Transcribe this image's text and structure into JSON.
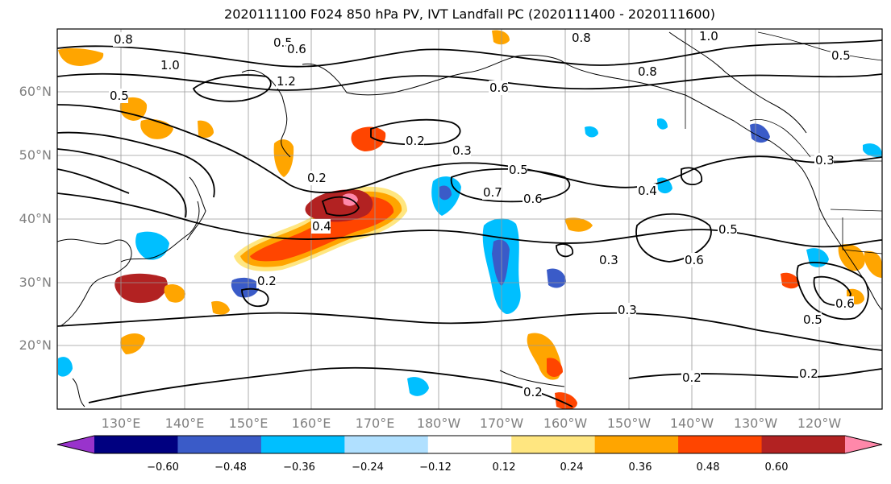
{
  "title": "2020111100 F024 850 hPa PV, IVT Landfall PC (2020111400 - 2020111600)",
  "map": {
    "lat_labels": [
      "60°N",
      "50°N",
      "40°N",
      "30°N",
      "20°N"
    ],
    "lon_labels": [
      "130°E",
      "140°E",
      "150°E",
      "160°E",
      "170°E",
      "180°W",
      "170°W",
      "160°W",
      "150°W",
      "140°W",
      "130°W",
      "120°W"
    ],
    "contour_labels": [
      {
        "text": "0.8"
      },
      {
        "text": "0.5"
      },
      {
        "text": "0.6"
      },
      {
        "text": "0.8"
      },
      {
        "text": "1.0"
      },
      {
        "text": "1.0"
      },
      {
        "text": "1.2"
      },
      {
        "text": "0.5"
      },
      {
        "text": "0.6"
      },
      {
        "text": "0.8"
      },
      {
        "text": "0.2"
      },
      {
        "text": "0.3"
      },
      {
        "text": "0.5"
      },
      {
        "text": "0.2"
      },
      {
        "text": "0.7"
      },
      {
        "text": "0.6"
      },
      {
        "text": "0.4"
      },
      {
        "text": "0.4"
      },
      {
        "text": "0.5"
      },
      {
        "text": "0.3"
      },
      {
        "text": "0.6"
      },
      {
        "text": "0.2"
      },
      {
        "text": "0.3"
      },
      {
        "text": "0.5"
      },
      {
        "text": "0.6"
      },
      {
        "text": "0.2"
      },
      {
        "text": "0.2"
      },
      {
        "text": "0.2"
      },
      {
        "text": "0.3"
      },
      {
        "text": "0.5"
      }
    ]
  },
  "colorbar": {
    "colors": [
      "#9933cc",
      "#000080",
      "#3a5bc8",
      "#00bfff",
      "#b0e0ff",
      "#ffffff",
      "#ffe680",
      "#ffa500",
      "#ff4500",
      "#b22222",
      "#ff88aa"
    ],
    "tick_labels": [
      "−0.60",
      "−0.48",
      "−0.36",
      "−0.24",
      "−0.12",
      "0.12",
      "0.24",
      "0.36",
      "0.48",
      "0.60"
    ]
  }
}
